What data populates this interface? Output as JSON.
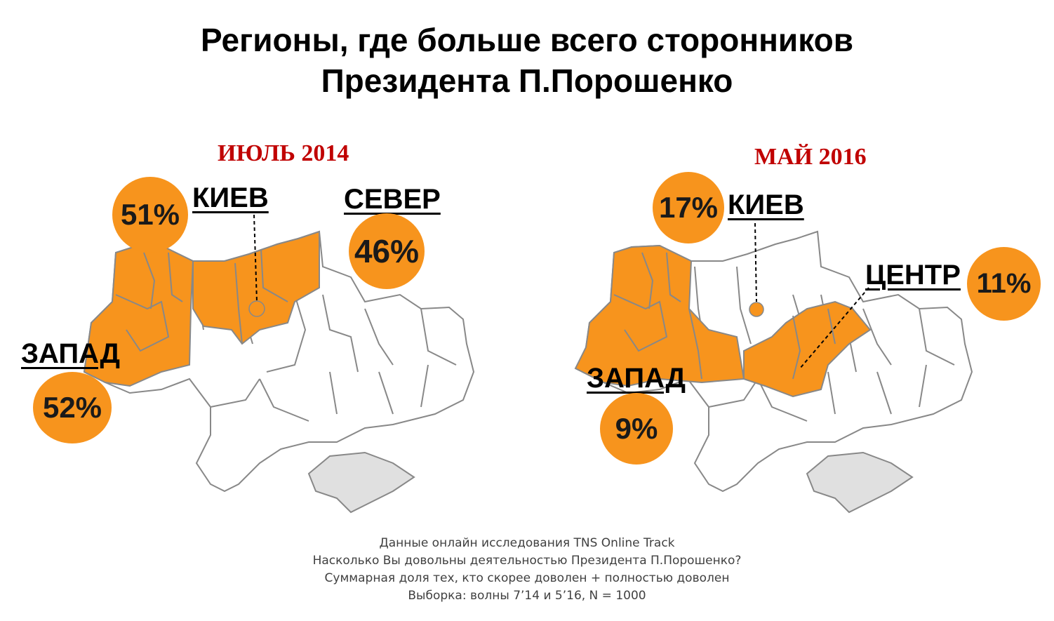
{
  "title": {
    "line1": "Регионы, где больше всего сторонников",
    "line2": "Президента П.Порошенко"
  },
  "colors": {
    "highlight": "#f7941d",
    "region_fill": "#ffffff",
    "crimea_fill": "#e0e0e0",
    "border": "#888888",
    "period": "#c00000"
  },
  "maps": [
    {
      "period": "ИЮЛЬ 2014",
      "labels": [
        {
          "region": "КИЕВ",
          "value": "51%"
        },
        {
          "region": "СЕВЕР",
          "value": "46%"
        },
        {
          "region": "ЗАПАД",
          "value": "52%"
        }
      ]
    },
    {
      "period": "МАЙ 2016",
      "labels": [
        {
          "region": "КИЕВ",
          "value": "17%"
        },
        {
          "region": "ЦЕНТР",
          "value": "11%"
        },
        {
          "region": "ЗАПАД",
          "value": "9%"
        }
      ]
    }
  ],
  "footnote": {
    "line1": "Данные онлайн исследования TNS Online Track",
    "line2": "Насколько Вы довольны деятельностью Президента П.Порошенко?",
    "line3": "Суммарная доля тех, кто скорее доволен + полностью доволен",
    "line4": "Выборка: волны 7’14 и 5’16, N = 1000"
  }
}
